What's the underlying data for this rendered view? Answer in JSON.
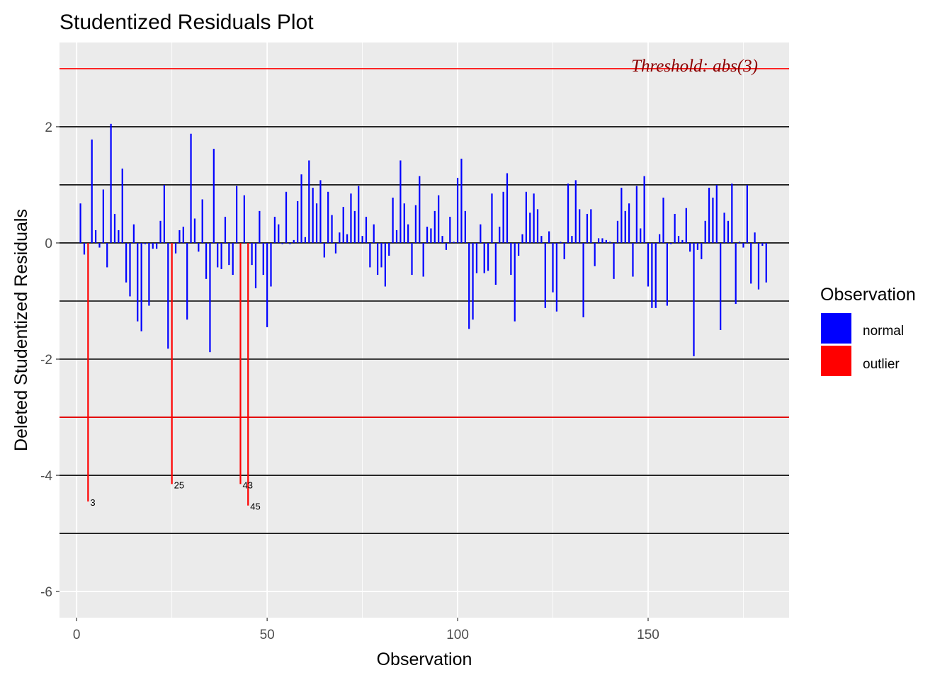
{
  "chart_data": {
    "type": "bar",
    "title": "Studentized Residuals Plot",
    "xlabel": "Observation",
    "ylabel": "Deleted Studentized Residuals",
    "xlim": [
      -4.5,
      187
    ],
    "ylim": [
      -6.45,
      3.45
    ],
    "x_ticks": [
      0,
      50,
      100,
      150
    ],
    "y_ticks": [
      -6,
      -4,
      -2,
      0,
      2
    ],
    "x_tick_labels": [
      "0",
      "50",
      "100",
      "150"
    ],
    "y_tick_labels": [
      "-6",
      "-4",
      "-2",
      "0",
      "2"
    ],
    "grid": true,
    "reference_lines": {
      "black": [
        -5,
        -4,
        -3,
        -2,
        -1,
        0,
        1,
        2
      ],
      "threshold": [
        -3,
        3
      ]
    },
    "threshold_label": "Threshold: abs(3)",
    "legend": {
      "title": "Observation",
      "position": "right",
      "entries": [
        {
          "label": "normal",
          "color": "#0000FF"
        },
        {
          "label": "outlier",
          "color": "#FF0000"
        }
      ]
    },
    "colors": {
      "normal": "#0000FF",
      "outlier": "#FF0000",
      "threshold_line": "#FF0000",
      "threshold_text": "#8B0000",
      "panel": "#EBEBEB"
    },
    "outliers": [
      {
        "obs": 3,
        "value": -4.45,
        "label": "3"
      },
      {
        "obs": 25,
        "value": -4.15,
        "label": "25"
      },
      {
        "obs": 43,
        "value": -4.15,
        "label": "43"
      },
      {
        "obs": 45,
        "value": -4.52,
        "label": "45"
      }
    ],
    "values": [
      0.68,
      -0.2,
      -4.45,
      1.78,
      0.22,
      -0.08,
      0.92,
      -0.42,
      2.05,
      0.5,
      0.22,
      1.28,
      -0.68,
      -0.92,
      0.32,
      -1.35,
      -1.52,
      -0.02,
      -1.08,
      -0.1,
      -0.1,
      0.38,
      1.0,
      -1.82,
      -4.15,
      -0.18,
      0.22,
      0.28,
      -1.32,
      1.88,
      0.42,
      -0.15,
      0.75,
      -0.62,
      -1.88,
      1.62,
      -0.42,
      -0.45,
      0.45,
      -0.38,
      -0.55,
      0.98,
      -4.15,
      0.82,
      -4.52,
      -0.38,
      -0.78,
      0.55,
      -0.55,
      -1.45,
      -0.75,
      0.45,
      0.32,
      -0.02,
      0.88,
      -0.02,
      0.05,
      0.72,
      1.18,
      0.1,
      1.42,
      0.95,
      0.68,
      1.08,
      -0.25,
      0.88,
      0.48,
      -0.18,
      0.18,
      0.62,
      0.15,
      0.85,
      0.55,
      0.98,
      0.12,
      0.45,
      -0.42,
      0.32,
      -0.55,
      -0.42,
      -0.75,
      -0.22,
      0.78,
      0.22,
      1.42,
      0.68,
      0.32,
      -0.55,
      0.65,
      1.15,
      -0.58,
      0.28,
      0.25,
      0.55,
      0.82,
      0.12,
      -0.12,
      0.45,
      0.02,
      1.12,
      1.45,
      0.55,
      -1.48,
      -1.32,
      -0.52,
      0.32,
      -0.52,
      -0.48,
      0.85,
      -0.72,
      0.28,
      0.88,
      1.2,
      -0.55,
      -1.35,
      -0.22,
      0.15,
      0.88,
      0.52,
      0.85,
      0.58,
      0.12,
      -1.12,
      0.2,
      -0.85,
      -1.18,
      0.02,
      -0.28,
      1.02,
      0.12,
      1.08,
      0.58,
      -1.28,
      0.5,
      0.58,
      -0.4,
      0.08,
      0.08,
      0.05,
      0.02,
      -0.62,
      0.38,
      0.95,
      0.55,
      0.68,
      -0.58,
      0.98,
      0.25,
      1.15,
      -0.75,
      -1.12,
      -1.12,
      0.15,
      0.78,
      -1.08,
      -0.02,
      0.5,
      0.12,
      0.05,
      0.6,
      -0.15,
      -1.95,
      -0.12,
      -0.28,
      0.38,
      0.95,
      0.78,
      1.0,
      -1.5,
      0.52,
      0.38,
      1.02,
      -1.05,
      0.02,
      -0.08,
      1.0,
      -0.7,
      0.18,
      -0.8,
      -0.05,
      -0.68
    ]
  }
}
